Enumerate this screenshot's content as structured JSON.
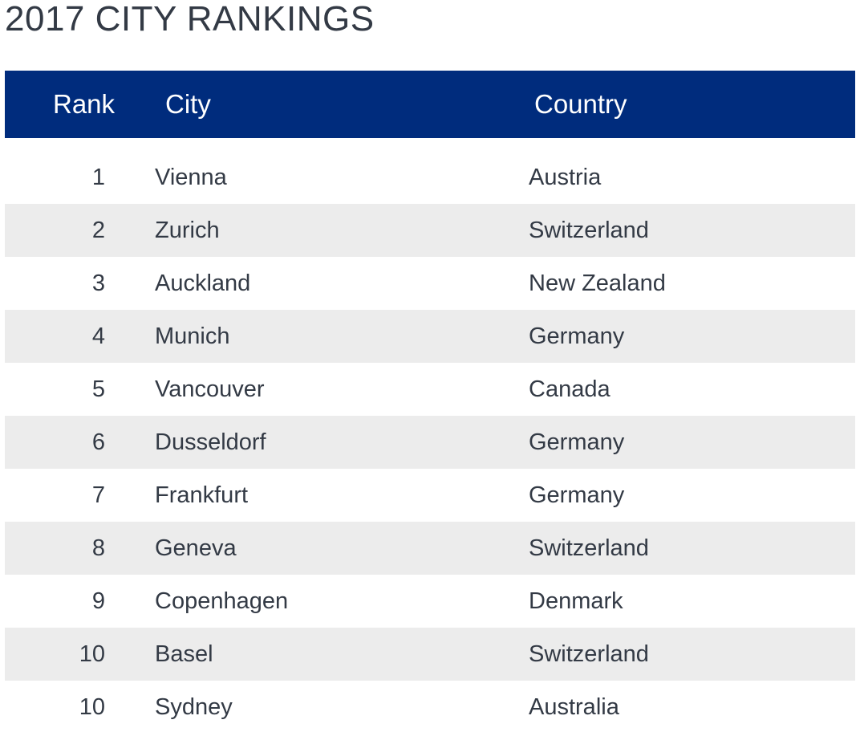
{
  "title": "2017 CITY RANKINGS",
  "table": {
    "headers": {
      "rank": "Rank",
      "city": "City",
      "country": "Country"
    },
    "rows": [
      {
        "rank": "1",
        "city": "Vienna",
        "country": "Austria"
      },
      {
        "rank": "2",
        "city": "Zurich",
        "country": "Switzerland"
      },
      {
        "rank": "3",
        "city": "Auckland",
        "country": "New Zealand"
      },
      {
        "rank": "4",
        "city": "Munich",
        "country": "Germany"
      },
      {
        "rank": "5",
        "city": "Vancouver",
        "country": "Canada"
      },
      {
        "rank": "6",
        "city": "Dusseldorf",
        "country": "Germany"
      },
      {
        "rank": "7",
        "city": "Frankfurt",
        "country": "Germany"
      },
      {
        "rank": "8",
        "city": "Geneva",
        "country": "Switzerland"
      },
      {
        "rank": "9",
        "city": "Copenhagen",
        "country": "Denmark"
      },
      {
        "rank": "10",
        "city": "Basel",
        "country": "Switzerland"
      },
      {
        "rank": "10",
        "city": "Sydney",
        "country": "Australia"
      }
    ]
  },
  "colors": {
    "header_bg": "#002c7d",
    "header_text": "#ffffff",
    "body_text": "#333a45",
    "row_stripe": "#ececec"
  }
}
